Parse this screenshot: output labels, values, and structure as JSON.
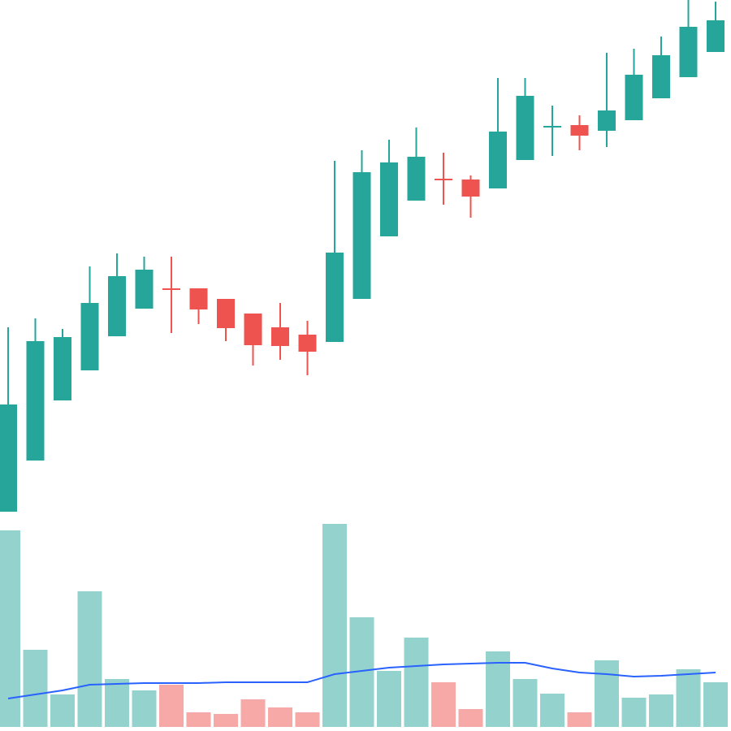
{
  "chart_data": {
    "type": "candlestick",
    "open": [
      270,
      333,
      407,
      444,
      486,
      520,
      545,
      545,
      532,
      514,
      497,
      488,
      479,
      532,
      609,
      653,
      680,
      679,
      668,
      703,
      743,
      746,
      739,
      752,
      779,
      805,
      836
    ],
    "high": [
      497,
      508,
      495,
      572,
      588,
      584,
      584,
      545,
      532,
      514,
      527,
      505,
      702,
      715,
      728,
      743,
      712,
      684,
      804,
      804,
      770,
      758,
      835,
      840,
      855,
      900,
      898
    ],
    "low": [
      270,
      333,
      407,
      444,
      486,
      520,
      490,
      501,
      480,
      450,
      457,
      438,
      479,
      532,
      609,
      653,
      648,
      632,
      668,
      703,
      708,
      715,
      719,
      752,
      779,
      805,
      836
    ],
    "close": [
      402,
      480,
      485,
      527,
      560,
      568,
      544,
      519,
      496,
      475,
      474,
      467,
      589,
      688,
      700,
      707,
      678,
      658,
      738,
      782,
      745,
      733,
      764,
      808,
      832,
      867,
      875
    ],
    "volume": [
      242,
      95,
      40,
      167,
      59,
      45,
      52,
      18,
      16,
      34,
      24,
      18,
      250,
      135,
      69,
      110,
      55,
      22,
      93,
      59,
      41,
      18,
      82,
      36,
      40,
      71,
      55
    ],
    "volume_ma": [
      35,
      40,
      45,
      52,
      53,
      54,
      54,
      54,
      55,
      55,
      55,
      55,
      65,
      69,
      73,
      75,
      77,
      78,
      79,
      79,
      72,
      67,
      65,
      62,
      63,
      65,
      67
    ],
    "up_color": "#26a69a",
    "down_color": "#ef5350",
    "volume_up_color": "#94d3cd",
    "volume_down_color": "#f6a9a6",
    "ma_color": "#2962ff",
    "ylim": [
      0,
      900
    ],
    "volume_ylim": [
      0,
      250
    ]
  }
}
